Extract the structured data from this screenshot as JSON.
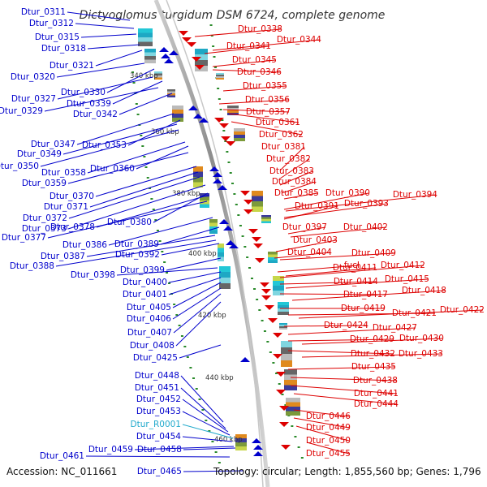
{
  "title": "Dictyoglomus turgidum DSM 6724, complete genome",
  "footer": {
    "accession": "Accession: NC_011661",
    "summary": "Topology: circular; Length: 1,855,560 bp; Genes: 1,796"
  },
  "colors": {
    "reverse_strand": "#0000cc",
    "forward_strand": "#dd0000",
    "rna": "#22aacc",
    "backbone": "#9a9a9a",
    "tick_dots": "#2a8a2a"
  },
  "scale_ticks": [
    "340 kbp",
    "360 kbp",
    "380 kbp",
    "400 kbp",
    "420 kbp",
    "440 kbp",
    "460 kbp"
  ],
  "left_labels": [
    {
      "text": "Dtur_0311",
      "kind": "cds"
    },
    {
      "text": "Dtur_0312",
      "kind": "cds"
    },
    {
      "text": "Dtur_0315",
      "kind": "cds"
    },
    {
      "text": "Dtur_0318",
      "kind": "cds"
    },
    {
      "text": "Dtur_0321",
      "kind": "cds"
    },
    {
      "text": "Dtur_0320",
      "kind": "cds"
    },
    {
      "text": "Dtur_0330",
      "kind": "cds"
    },
    {
      "text": "Dtur_0327",
      "kind": "cds"
    },
    {
      "text": "Dtur_0339",
      "kind": "cds"
    },
    {
      "text": "Dtur_0329",
      "kind": "cds"
    },
    {
      "text": "Dtur_0342",
      "kind": "cds"
    },
    {
      "text": "Dtur_0347",
      "kind": "cds"
    },
    {
      "text": "Dtur_0353",
      "kind": "cds"
    },
    {
      "text": "Dtur_0349",
      "kind": "cds"
    },
    {
      "text": "Dtur_0350",
      "kind": "cds"
    },
    {
      "text": "Dtur_0358",
      "kind": "cds"
    },
    {
      "text": "Dtur_0360",
      "kind": "cds"
    },
    {
      "text": "Dtur_0359",
      "kind": "cds"
    },
    {
      "text": "Dtur_0370",
      "kind": "cds"
    },
    {
      "text": "Dtur_0371",
      "kind": "cds"
    },
    {
      "text": "Dtur_0372",
      "kind": "cds"
    },
    {
      "text": "Dtur_0380",
      "kind": "cds"
    },
    {
      "text": "Dtur_0373",
      "kind": "cds"
    },
    {
      "text": "Dtur_0378",
      "kind": "cds"
    },
    {
      "text": "Dtur_0377",
      "kind": "cds"
    },
    {
      "text": "Dtur_0386",
      "kind": "cds"
    },
    {
      "text": "Dtur_0389",
      "kind": "cds"
    },
    {
      "text": "Dtur_0387",
      "kind": "cds"
    },
    {
      "text": "Dtur_0392",
      "kind": "cds"
    },
    {
      "text": "Dtur_0388",
      "kind": "cds"
    },
    {
      "text": "Dtur_0399",
      "kind": "cds"
    },
    {
      "text": "Dtur_0398",
      "kind": "cds"
    },
    {
      "text": "Dtur_0400",
      "kind": "cds"
    },
    {
      "text": "Dtur_0401",
      "kind": "cds"
    },
    {
      "text": "Dtur_0405",
      "kind": "cds"
    },
    {
      "text": "Dtur_0406",
      "kind": "cds"
    },
    {
      "text": "Dtur_0407",
      "kind": "cds"
    },
    {
      "text": "Dtur_0408",
      "kind": "cds"
    },
    {
      "text": "Dtur_0425",
      "kind": "cds"
    },
    {
      "text": "Dtur_0448",
      "kind": "cds"
    },
    {
      "text": "Dtur_0451",
      "kind": "cds"
    },
    {
      "text": "Dtur_0452",
      "kind": "cds"
    },
    {
      "text": "Dtur_0453",
      "kind": "cds"
    },
    {
      "text": "Dtur_R0001",
      "kind": "rna"
    },
    {
      "text": "Dtur_0454",
      "kind": "cds"
    },
    {
      "text": "Dtur_0459",
      "kind": "cds"
    },
    {
      "text": "Dtur_0458",
      "kind": "cds"
    },
    {
      "text": "Dtur_0461",
      "kind": "cds"
    },
    {
      "text": "Dtur_0465",
      "kind": "cds"
    }
  ],
  "right_labels": [
    "Dtur_0338",
    "Dtur_0344",
    "Dtur_0341",
    "Dtur_0345",
    "Dtur_0346",
    "Dtur_0355",
    "Dtur_0356",
    "Dtur_0357",
    "Dtur_0361",
    "Dtur_0362",
    "Dtur_0381",
    "Dtur_0382",
    "Dtur_0383",
    "Dtur_0384",
    "Dtur_0385",
    "Dtur_0390",
    "Dtur_0394",
    "Dtur_0391",
    "Dtur_0393",
    "Dtur_0397",
    "Dtur_0402",
    "Dtur_0403",
    "Dtur_0404",
    "Dtur_0409",
    "fucI",
    "Dtur_0411",
    "Dtur_0412",
    "Dtur_0414",
    "Dtur_0415",
    "Dtur_0417",
    "Dtur_0418",
    "Dtur_0419",
    "Dtur_0421",
    "Dtur_0422",
    "Dtur_0424",
    "Dtur_0427",
    "Dtur_0429",
    "Dtur_0430",
    "Dtur_0432",
    "Dtur_0433",
    "Dtur_0435",
    "Dtur_0438",
    "Dtur_0441",
    "Dtur_0444",
    "Dtur_0446",
    "Dtur_0449",
    "Dtur_0450",
    "Dtur_0455"
  ]
}
